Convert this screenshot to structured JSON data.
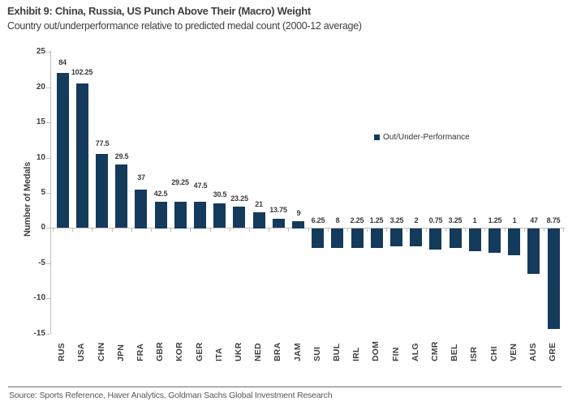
{
  "colors": {
    "bar": "#143A5C",
    "axis": "#BFBFBF",
    "heading_text": "#3F3F3F",
    "source_text": "#57585A"
  },
  "footer": {
    "source": "Source: Sports Reference, Haver Analytics, Goldman Sachs Global Investment Research"
  },
  "chart_data": {
    "type": "bar",
    "title": "Exhibit 9: China, Russia, US Punch Above Their (Macro) Weight",
    "subtitle": "Country out/underperformance relative to predicted medal count (2000-12 average)",
    "ylabel": "Number of Medals",
    "xlabel": "",
    "ylim": [
      -15,
      25
    ],
    "yticks": [
      25,
      20,
      15,
      10,
      5,
      0,
      -5,
      -10,
      -15
    ],
    "grid": false,
    "legend_label": "Out/Under-Performance",
    "legend_position": "middle-right",
    "categories": [
      "RUS",
      "USA",
      "CHN",
      "JPN",
      "FRA",
      "GBR",
      "KOR",
      "GER",
      "ITA",
      "UKR",
      "NED",
      "BRA",
      "JAM",
      "SUI",
      "BUL",
      "IRL",
      "DOM",
      "FIN",
      "ALG",
      "CMR",
      "BEL",
      "ISR",
      "CHI",
      "VEN",
      "AUS",
      "GRE"
    ],
    "values": [
      22,
      20.5,
      10.5,
      9,
      5.5,
      3.75,
      3.75,
      3.75,
      3.5,
      3,
      2.25,
      1.25,
      1,
      -2.75,
      -2.75,
      -2.75,
      -2.75,
      -2.5,
      -2.5,
      -3,
      -2.75,
      -3.25,
      -3.5,
      -3.75,
      -6.5,
      -14.25
    ],
    "bar_labels": [
      "84",
      "102.25",
      "77.5",
      "29.5",
      "37",
      "42.5",
      "29.25",
      "47.5",
      "30.5",
      "23.25",
      "21",
      "13.75",
      "9",
      "6.25",
      "8",
      "2.25",
      "1.25",
      "3.25",
      "2",
      "0.75",
      "3.25",
      "1",
      "1.25",
      "1",
      "47",
      "8.75"
    ]
  }
}
